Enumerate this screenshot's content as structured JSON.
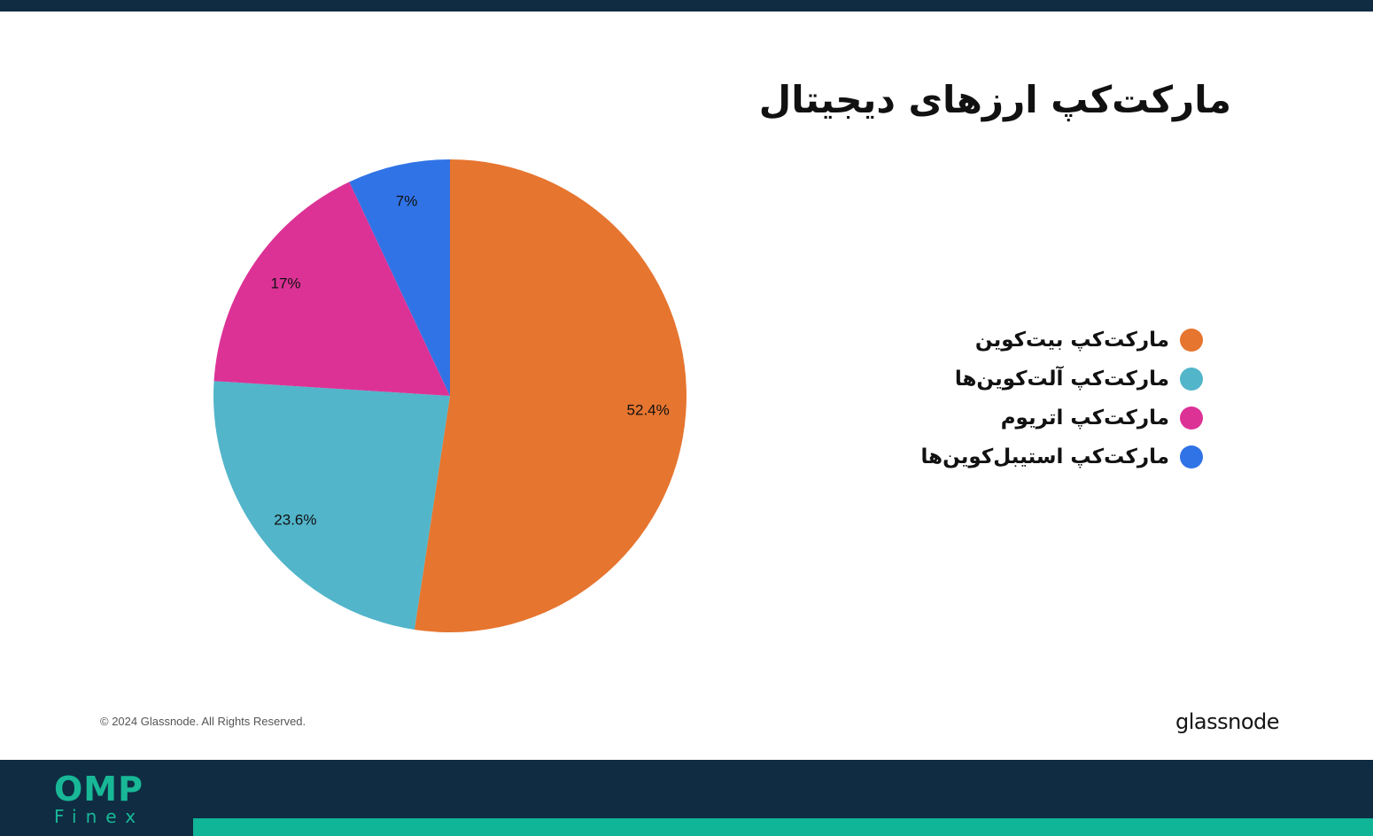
{
  "chart_data": {
    "type": "pie",
    "title": "مارکت‌کپ ارزهای دیجیتال",
    "categories": [
      "مارکت‌کپ بیت‌کوین",
      "مارکت‌کپ آلت‌کوین‌ها",
      "مارکت‌کپ اتریوم",
      "مارکت‌کپ استیبل‌کوین‌ها"
    ],
    "values": [
      52.4,
      23.6,
      17,
      7
    ],
    "value_labels": [
      "52.4%",
      "23.6%",
      "17%",
      "7%"
    ],
    "colors": [
      "#e6752f",
      "#52b5ca",
      "#dc3296",
      "#3073e6"
    ],
    "legend_position": "right"
  },
  "footer": {
    "copyright": "© 2024 Glassnode. All Rights Reserved.",
    "source_logo": "glassnode",
    "brand_name": "OMP",
    "brand_sub": "Finex"
  }
}
